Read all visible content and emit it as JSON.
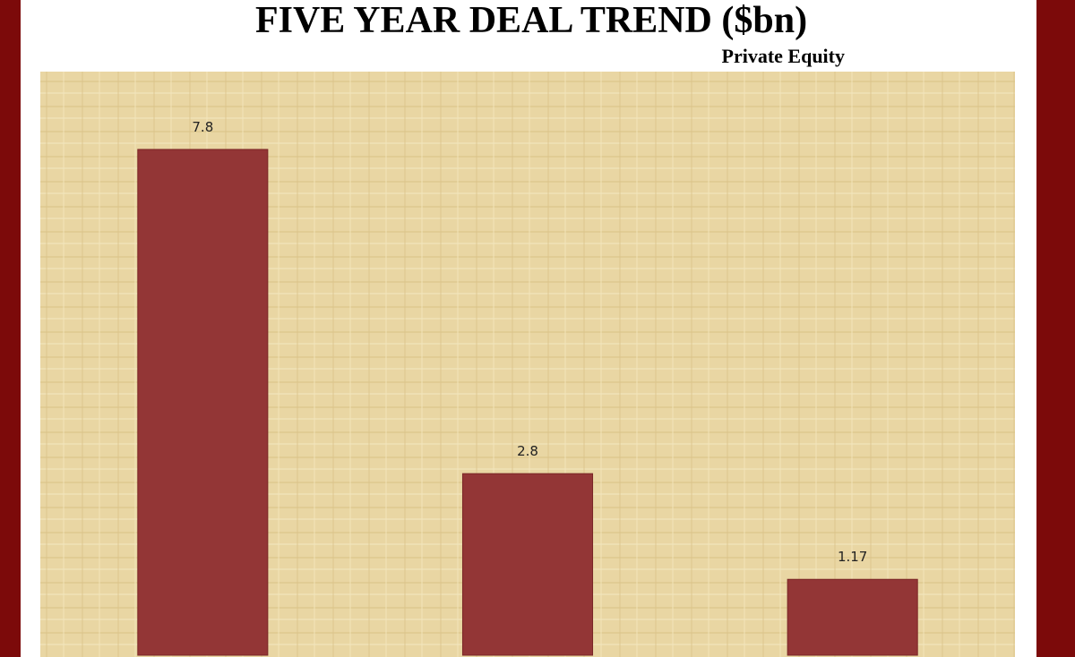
{
  "chart_data": {
    "type": "bar",
    "title": "FIVE YEAR DEAL TREND ($bn)",
    "subtitle": "Private Equity",
    "categories": [
      null,
      null,
      null
    ],
    "values": [
      7.8,
      2.8,
      1.17
    ],
    "color": "#933636",
    "ylim": [
      0,
      9
    ]
  }
}
